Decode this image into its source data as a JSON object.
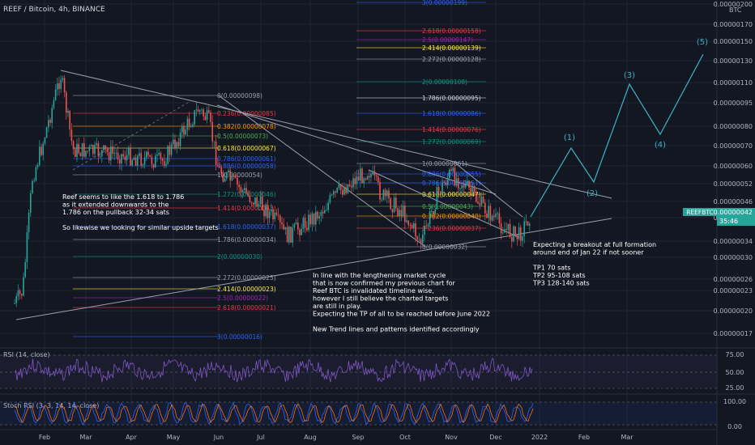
{
  "header": {
    "title": "REEF / Bitcoin, 4h, BINANCE",
    "currency": "BTC"
  },
  "colors": {
    "bg": "#131722",
    "grid": "#1f2433",
    "axis_text": "#b2b5be",
    "text": "#d1d4dc",
    "up": "#26a69a",
    "down": "#ef5350",
    "trend": "#9aa0ae",
    "wave": "#3bb3c9",
    "rsi": "#7e57c2",
    "stoch_k": "#2962ff",
    "stoch_d": "#ff6d00",
    "fib_red": "#f23645",
    "fib_green": "#4caf50",
    "fib_blue": "#2962ff",
    "fib_orange": "#ff9800",
    "fib_yellow": "#ffeb3b",
    "fib_gray": "#787b86",
    "fib_teal": "#089981",
    "fib_purple": "#9c27b0",
    "badge": "#26a69a"
  },
  "chart_data": {
    "type": "candlestick",
    "symbol": "REEF / Bitcoin",
    "timeframe": "4h",
    "exchange": "BINANCE",
    "x_ticks": [
      "Feb",
      "Mar",
      "Apr",
      "May",
      "Jun",
      "Jul",
      "Aug",
      "Sep",
      "Oct",
      "Nov",
      "Dec",
      "2022",
      "Feb",
      "Mar"
    ],
    "y_ticks": [
      "0.00000200",
      "0.00000170",
      "0.00000150",
      "0.00000130",
      "0.00000110",
      "0.00000095",
      "0.00000080",
      "0.00000070",
      "0.00000060",
      "0.00000052",
      "0.00000046",
      "0.00000040",
      "0.00000034",
      "0.00000030",
      "0.00000026",
      "0.00000023",
      "0.00000020",
      "0.00000017"
    ],
    "ylabel": "BTC",
    "log_scale": true,
    "last_price_label": "REEFBTC",
    "last_price": "0.00000042",
    "countdown": "35:46",
    "waves": [
      "(1)",
      "(2)",
      "(3)",
      "(4)",
      "(5)"
    ],
    "fib_1": [
      {
        "label": "0(0.00000098)",
        "color": "#9aa0ae"
      },
      {
        "label": "0.236(0.00000085)",
        "color": "#f23645"
      },
      {
        "label": "0.382(0.00000078)",
        "color": "#ff9800"
      },
      {
        "label": "0.5(0.00000073)",
        "color": "#4caf50"
      },
      {
        "label": "0.618(0.00000067)",
        "color": "#ffeb3b"
      },
      {
        "label": "0.786(0.00000061)",
        "color": "#2962ff"
      },
      {
        "label": "0.886(0.00000058)",
        "color": "#2962ff"
      },
      {
        "label": "1(0.00000054)",
        "color": "#9aa0ae"
      },
      {
        "label": "1.272(0.00000046)",
        "color": "#089981"
      },
      {
        "label": "1.414(0.00000043)",
        "color": "#f23645"
      },
      {
        "label": "1.618(0.00000037)",
        "color": "#2962ff"
      },
      {
        "label": "1.786(0.00000034)",
        "color": "#9aa0ae"
      },
      {
        "label": "2(0.00000030)",
        "color": "#089981"
      },
      {
        "label": "2.272(0.00000025)",
        "color": "#9aa0ae"
      },
      {
        "label": "2.414(0.00000023)",
        "color": "#ffeb3b"
      },
      {
        "label": "2.5(0.00000022)",
        "color": "#9c27b0"
      },
      {
        "label": "2.618(0.00000021)",
        "color": "#f23645"
      },
      {
        "label": "3(0.00000016)",
        "color": "#2962ff"
      }
    ],
    "fib_2": [
      {
        "label": "3(0.00000199)",
        "color": "#2962ff"
      },
      {
        "label": "2.618(0.00000158)",
        "color": "#f23645"
      },
      {
        "label": "2.5(0.00000147)",
        "color": "#9c27b0"
      },
      {
        "label": "2.414(0.00000139)",
        "color": "#ffeb3b"
      },
      {
        "label": "2.272(0.00000128)",
        "color": "#9aa0ae"
      },
      {
        "label": "2(0.00000108)",
        "color": "#089981"
      },
      {
        "label": "1.786(0.00000095)",
        "color": "#d1d4dc"
      },
      {
        "label": "1.618(0.00000086)",
        "color": "#2962ff"
      },
      {
        "label": "1.414(0.00000076)",
        "color": "#f23645"
      },
      {
        "label": "1.272(0.00000069)",
        "color": "#089981"
      },
      {
        "label": "1(0.00000061)",
        "color": "#9aa0ae"
      },
      {
        "label": "0.886(0.00000055)",
        "color": "#2962ff"
      },
      {
        "label": "0.786(0.00000051)",
        "color": "#2962ff"
      },
      {
        "label": "0.618(0.00000047)",
        "color": "#ffeb3b"
      },
      {
        "label": "0.5(0.00000043)",
        "color": "#4caf50"
      },
      {
        "label": "0.382(0.00000040)",
        "color": "#ff9800"
      },
      {
        "label": "0.236(0.00000037)",
        "color": "#f23645"
      },
      {
        "label": "0(0.00000032)",
        "color": "#9aa0ae"
      }
    ],
    "rsi": {
      "label": "RSI (14, close)",
      "levels": [
        "75.00",
        "50.00",
        "25.00"
      ]
    },
    "stoch": {
      "label": "Stoch RSI (3, 3, 14, 14, close)",
      "levels": [
        "100.00",
        "0.00"
      ]
    }
  },
  "annotations": {
    "note1": [
      "Reef seems to like the 1.618 to 1.786",
      "as it extended downwards to the",
      "1.786 on the pullback 32-34 sats",
      "",
      "So likewise we looking for similar upside targets"
    ],
    "note2": [
      "In line with the lengthening market cycle",
      "that is now confirmed my previous chart for",
      "Reef BTC is invalidated timeline wise,",
      "however I still believe the charted targets",
      "are still in play.",
      "Expecting the TP of all to be reached before June 2022",
      "",
      "New Trend lines and patterns identified accordingly"
    ],
    "note3": [
      "Expecting a breakout at full formation",
      "around end of Jan 22 if not sooner",
      "",
      "TP1 70 sats",
      "TP2 95-108 sats",
      "TP3 128-140 sats"
    ]
  }
}
